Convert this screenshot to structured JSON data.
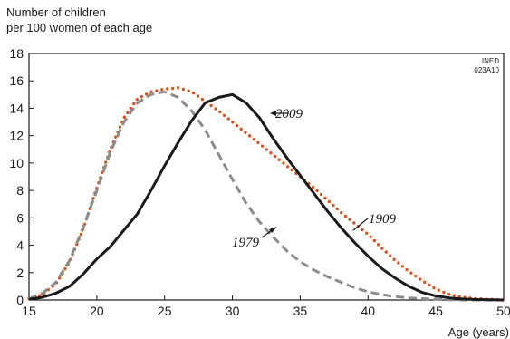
{
  "chart_data": {
    "type": "line",
    "ylabel_lines": [
      "Number of children",
      "per 100 women of each age"
    ],
    "xlabel": "Age (years)",
    "source_lines": [
      "INED",
      "023A10"
    ],
    "xlim": [
      15,
      50
    ],
    "ylim": [
      0,
      18
    ],
    "xticks": [
      15,
      20,
      25,
      30,
      35,
      40,
      45,
      50
    ],
    "yticks": [
      0,
      2,
      4,
      6,
      8,
      10,
      12,
      14,
      16,
      18
    ],
    "grid": false,
    "series": [
      {
        "name": "1909",
        "color": "#d9541e",
        "style": "dotted",
        "x": [
          15,
          16,
          17,
          18,
          19,
          20,
          21,
          22,
          23,
          24,
          25,
          26,
          27,
          28,
          29,
          30,
          31,
          32,
          33,
          34,
          35,
          36,
          37,
          38,
          39,
          40,
          41,
          42,
          43,
          44,
          45,
          46,
          47,
          48,
          49,
          50
        ],
        "values": [
          0.1,
          0.4,
          1.2,
          2.8,
          5.2,
          8.2,
          11.0,
          13.3,
          14.7,
          15.2,
          15.4,
          15.5,
          15.2,
          14.5,
          13.8,
          13.0,
          12.2,
          11.4,
          10.6,
          9.8,
          9.0,
          8.2,
          7.3,
          6.4,
          5.6,
          4.8,
          3.8,
          2.9,
          2.1,
          1.4,
          0.8,
          0.4,
          0.2,
          0.1,
          0.05,
          0.0
        ]
      },
      {
        "name": "1979",
        "color": "#8c8c8c",
        "style": "dashed",
        "x": [
          15,
          16,
          17,
          18,
          19,
          20,
          21,
          22,
          23,
          24,
          25,
          26,
          27,
          28,
          29,
          30,
          31,
          32,
          33,
          34,
          35,
          36,
          37,
          38,
          39,
          40,
          41,
          42,
          43,
          44,
          45,
          46,
          47,
          48,
          49,
          50
        ],
        "values": [
          0.1,
          0.5,
          1.3,
          2.9,
          5.3,
          8.0,
          10.8,
          13.0,
          14.4,
          15.0,
          15.2,
          14.8,
          13.8,
          12.4,
          10.6,
          8.8,
          7.1,
          5.7,
          4.6,
          3.6,
          2.8,
          2.2,
          1.7,
          1.3,
          0.9,
          0.6,
          0.4,
          0.25,
          0.15,
          0.1,
          0.05,
          0.02,
          0.0,
          0.0,
          0.0,
          0.0
        ]
      },
      {
        "name": "2009",
        "color": "#1a1a1a",
        "style": "solid",
        "x": [
          15,
          16,
          17,
          18,
          19,
          20,
          21,
          22,
          23,
          24,
          25,
          26,
          27,
          28,
          29,
          30,
          31,
          32,
          33,
          34,
          35,
          36,
          37,
          38,
          39,
          40,
          41,
          42,
          43,
          44,
          45,
          46,
          47,
          48,
          49,
          50
        ],
        "values": [
          0.05,
          0.2,
          0.5,
          1.0,
          1.9,
          3.0,
          3.9,
          5.1,
          6.3,
          8.0,
          9.8,
          11.5,
          13.1,
          14.4,
          14.8,
          15.0,
          14.4,
          13.3,
          11.8,
          10.4,
          9.1,
          7.8,
          6.5,
          5.3,
          4.2,
          3.2,
          2.3,
          1.6,
          1.0,
          0.55,
          0.3,
          0.15,
          0.07,
          0.03,
          0.01,
          0.0
        ]
      }
    ]
  }
}
